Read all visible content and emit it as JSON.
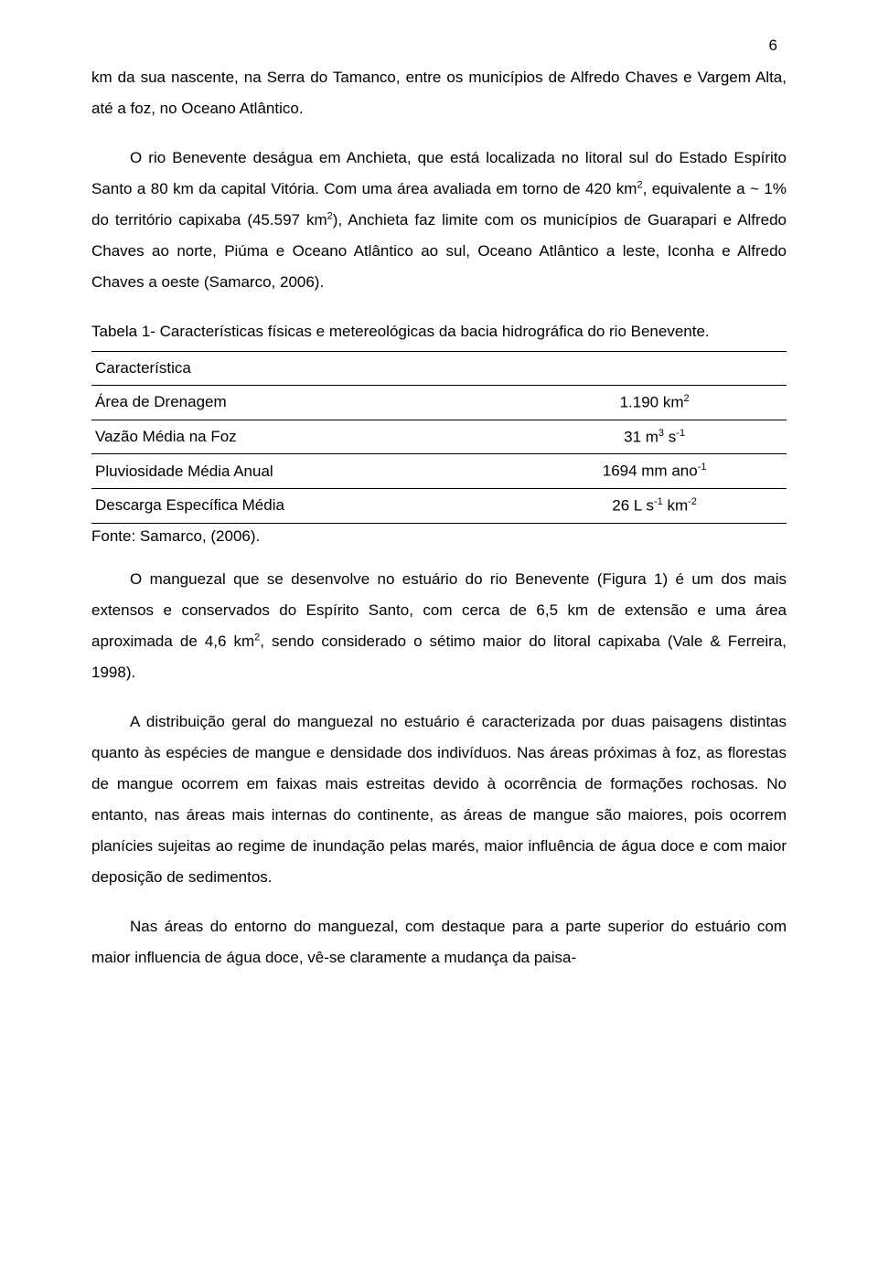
{
  "page_number": "6",
  "paragraphs": {
    "p1": "km da sua nascente, na Serra do Tamanco, entre os municípios de Alfredo Chaves e Vargem Alta, até a foz, no Oceano Atlântico.",
    "p2_before_sup1": "O rio Benevente deságua em Anchieta, que está localizada no litoral sul do Estado Espírito Santo a 80 km da capital Vitória. Com uma área avaliada em torno de 420 km",
    "p2_sup1": "2",
    "p2_mid1": ", equivalente a ~ 1% do território capixaba (45.597 km",
    "p2_sup2": "2",
    "p2_after": "), Anchieta faz limite com os municípios de Guarapari e Alfredo Chaves ao norte, Piúma e Oceano Atlântico ao sul, Oceano Atlântico a leste, Iconha e Alfredo Chaves a oeste (Samarco, 2006).",
    "p3_before_sup1": "O manguezal que se desenvolve no estuário do rio Benevente (Figura 1) é um dos mais extensos e conservados do Espírito Santo, com cerca de 6,5 km de extensão e uma área aproximada de 4,6 km",
    "p3_sup1": "2",
    "p3_after": ", sendo considerado o sétimo maior do litoral capixaba (Vale & Ferreira, 1998).",
    "p4": "A distribuição geral do manguezal no estuário é caracterizada por duas paisagens distintas quanto às espécies de mangue e densidade dos indivíduos. Nas áreas próximas à foz, as florestas de mangue ocorrem em faixas mais estreitas devido à ocorrência de formações rochosas. No entanto, nas áreas mais internas do continente, as áreas de mangue são maiores, pois ocorrem planícies sujeitas ao regime de inundação pelas marés, maior influência de água doce e com maior deposição de sedimentos.",
    "p5": "Nas áreas do entorno do manguezal, com destaque para a parte superior do estuário com maior influencia de água doce, vê-se claramente a mudança da paisa-"
  },
  "table": {
    "caption": "Tabela 1- Características físicas e metereológicas da bacia hidrográfica do rio Benevente.",
    "header": "Característica",
    "rows": [
      {
        "label": "Área de Drenagem",
        "value_prefix": "1.190 km",
        "value_sup": "2",
        "value_suffix": ""
      },
      {
        "label": "Vazão Média na Foz",
        "value_prefix": "31 m",
        "value_sup": "3",
        "value_suffix_prefix": " s",
        "value_sup2": "-1",
        "value_suffix": ""
      },
      {
        "label": "Pluviosidade Média Anual",
        "value_prefix": "1694 mm ano",
        "value_sup": "-1",
        "value_suffix": ""
      },
      {
        "label": "Descarga Específica Média",
        "value_prefix": "26 L s",
        "value_sup": "-1",
        "value_suffix_prefix": " km",
        "value_sup2": "-2",
        "value_suffix": ""
      }
    ],
    "footer": "Fonte: Samarco, (2006)."
  }
}
